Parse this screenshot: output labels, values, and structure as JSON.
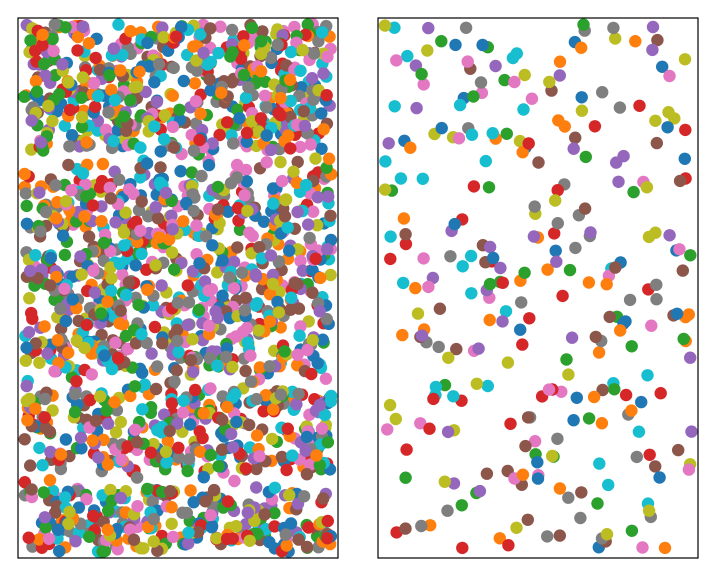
{
  "chart_data": [
    {
      "type": "scatter",
      "title": "",
      "xlabel": "",
      "ylabel": "",
      "axes_visible": false,
      "grid": false,
      "legend": "none",
      "xlim": [
        0,
        1
      ],
      "ylim": [
        0,
        1
      ],
      "marker": "circle",
      "colors": [
        "#1f77b4",
        "#ff7f0e",
        "#2ca02c",
        "#d62728",
        "#9467bd",
        "#8c564b",
        "#e377c2",
        "#7f7f7f",
        "#bcbd22",
        "#17becf"
      ],
      "seed": 7,
      "band_edges": [
        0.0,
        0.12,
        0.15,
        0.3,
        0.34,
        0.72,
        0.76,
        1.0
      ],
      "band_densities": [
        1.0,
        0.18,
        1.0,
        0.25,
        1.0,
        0.3,
        1.0
      ],
      "point_count": 1900
    },
    {
      "type": "scatter",
      "title": "",
      "xlabel": "",
      "ylabel": "",
      "axes_visible": false,
      "grid": false,
      "legend": "none",
      "xlim": [
        0,
        1
      ],
      "ylim": [
        0,
        1
      ],
      "marker": "circle",
      "colors": [
        "#1f77b4",
        "#ff7f0e",
        "#2ca02c",
        "#d62728",
        "#9467bd",
        "#8c564b",
        "#e377c2",
        "#7f7f7f",
        "#bcbd22",
        "#17becf"
      ],
      "seed": 42,
      "point_count": 300
    }
  ]
}
